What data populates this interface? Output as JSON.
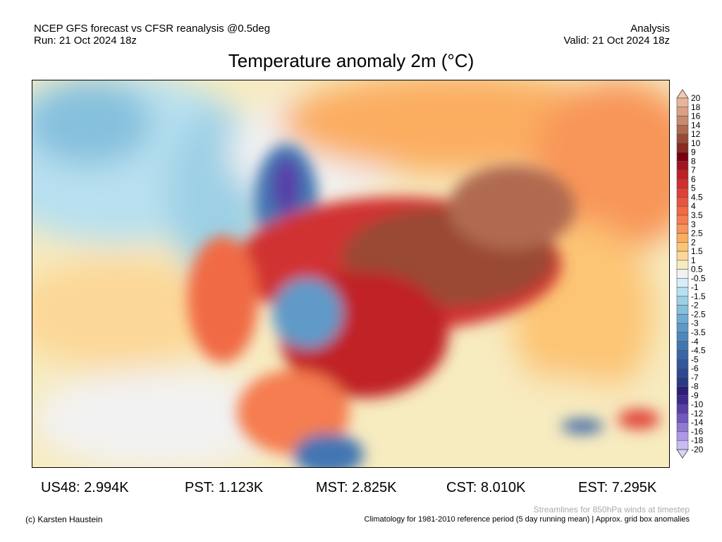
{
  "header": {
    "left_line1": "NCEP GFS forecast vs CFSR reanalysis @0.5deg",
    "left_line2": "Run: 21 Oct 2024 18z",
    "right_line1": "Analysis",
    "right_line2": "Valid: 21 Oct 2024 18z",
    "title": "Temperature anomaly 2m (°C)"
  },
  "colorbar": {
    "labels": [
      "20",
      "18",
      "16",
      "14",
      "12",
      "10",
      "9",
      "8",
      "7",
      "6",
      "5",
      "4.5",
      "4",
      "3.5",
      "3",
      "2.5",
      "2",
      "1.5",
      "1",
      "0.5",
      "-0.5",
      "-1",
      "-1.5",
      "-2",
      "-2.5",
      "-3",
      "-3.5",
      "-4",
      "-4.5",
      "-5",
      "-6",
      "-7",
      "-8",
      "-9",
      "-10",
      "-12",
      "-14",
      "-16",
      "-18",
      "-20"
    ],
    "colors": [
      "#e8b49a",
      "#dba085",
      "#c98a6e",
      "#b06a50",
      "#9a4a35",
      "#8a2a20",
      "#7a0010",
      "#a51520",
      "#c02025",
      "#d03030",
      "#e04035",
      "#e85540",
      "#f06a45",
      "#f57d50",
      "#f89558",
      "#fbad60",
      "#fcc575",
      "#fcd898",
      "#f7ebc0",
      "#f2f2f2",
      "#d6eefa",
      "#b8e0f0",
      "#9dd0e5",
      "#85c0dc",
      "#70acd2",
      "#5e9ac8",
      "#4f88be",
      "#4276b2",
      "#3a66a8",
      "#33579e",
      "#2d4892",
      "#283a85",
      "#2c1e78",
      "#3c2a8c",
      "#5840a8",
      "#7458c0",
      "#9078d5",
      "#ac98e5",
      "#c8bcf2"
    ],
    "top_triangle_color": "#f5c8b0",
    "bottom_triangle_color": "#dcd4f8"
  },
  "stats": [
    {
      "label": "US48: 2.994K"
    },
    {
      "label": "PST: 1.123K"
    },
    {
      "label": "MST: 2.825K"
    },
    {
      "label": "CST: 8.010K"
    },
    {
      "label": "EST: 7.295K"
    }
  ],
  "footer": {
    "credit": "(c) Karsten Haustein",
    "streamlines_note": "Streamlines for 850hPa winds at timestep",
    "climatology_note": "Climatology for 1981-2010 reference period (5 day running mean) | Approx. grid box anomalies"
  }
}
